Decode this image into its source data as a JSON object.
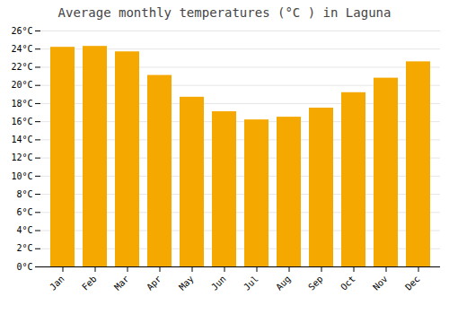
{
  "chart_data": {
    "type": "bar",
    "title": "Average monthly temperatures (°C ) in Laguna",
    "categories": [
      "Jan",
      "Feb",
      "Mar",
      "Apr",
      "May",
      "Jun",
      "Jul",
      "Aug",
      "Sep",
      "Oct",
      "Nov",
      "Dec"
    ],
    "values": [
      24.2,
      24.3,
      23.7,
      21.1,
      18.7,
      17.1,
      16.2,
      16.5,
      17.5,
      19.2,
      20.8,
      22.6
    ],
    "color": "#F5A800",
    "ylim": [
      0,
      26
    ],
    "yticks": [
      {
        "value": 0,
        "label": "0°C"
      },
      {
        "value": 2,
        "label": "2°C"
      },
      {
        "value": 4,
        "label": "4°C"
      },
      {
        "value": 6,
        "label": "6°C"
      },
      {
        "value": 8,
        "label": "8°C"
      },
      {
        "value": 10,
        "label": "10°C"
      },
      {
        "value": 12,
        "label": "12°C"
      },
      {
        "value": 14,
        "label": "14°C"
      },
      {
        "value": 16,
        "label": "16°C"
      },
      {
        "value": 18,
        "label": "18°C"
      },
      {
        "value": 20,
        "label": "20°C"
      },
      {
        "value": 22,
        "label": "22°C"
      },
      {
        "value": 24,
        "label": "24°C"
      },
      {
        "value": 26,
        "label": "26°C"
      }
    ],
    "grid": true
  }
}
